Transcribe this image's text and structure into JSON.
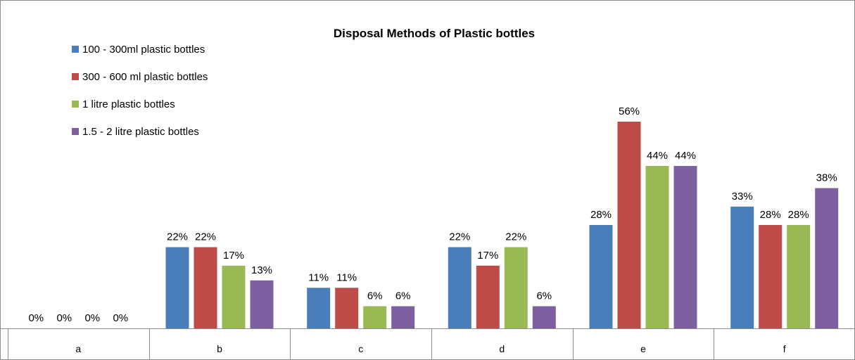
{
  "chart_data": {
    "type": "bar",
    "title": "Disposal Methods of Plastic bottles",
    "categories": [
      "a",
      "b",
      "c",
      "d",
      "e",
      "f"
    ],
    "series": [
      {
        "name": "100 - 300ml plastic bottles",
        "color": "#4a7ebb",
        "values": [
          0,
          22,
          11,
          22,
          28,
          33
        ],
        "labels": [
          "0%",
          "22%",
          "11%",
          "22%",
          "28%",
          "33%"
        ]
      },
      {
        "name": "300 - 600 ml plastic bottles",
        "color": "#be4b48",
        "values": [
          0,
          22,
          11,
          17,
          56,
          28
        ],
        "labels": [
          "0%",
          "22%",
          "11%",
          "17%",
          "56%",
          "28%"
        ]
      },
      {
        "name": "1 litre plastic bottles",
        "color": "#98b954",
        "values": [
          0,
          17,
          6,
          22,
          44,
          28
        ],
        "labels": [
          "0%",
          "17%",
          "6%",
          "22%",
          "44%",
          "28%"
        ]
      },
      {
        "name": "1.5 - 2 litre plastic bottles",
        "color": "#7d60a0",
        "values": [
          0,
          13,
          6,
          6,
          44,
          38
        ],
        "labels": [
          "0%",
          "13%",
          "6%",
          "6%",
          "44%",
          "38%"
        ]
      }
    ],
    "unit": "%",
    "ylim": [
      0,
      60
    ],
    "grid": false,
    "legend_position": "top-left",
    "xlabel": "",
    "ylabel": ""
  }
}
